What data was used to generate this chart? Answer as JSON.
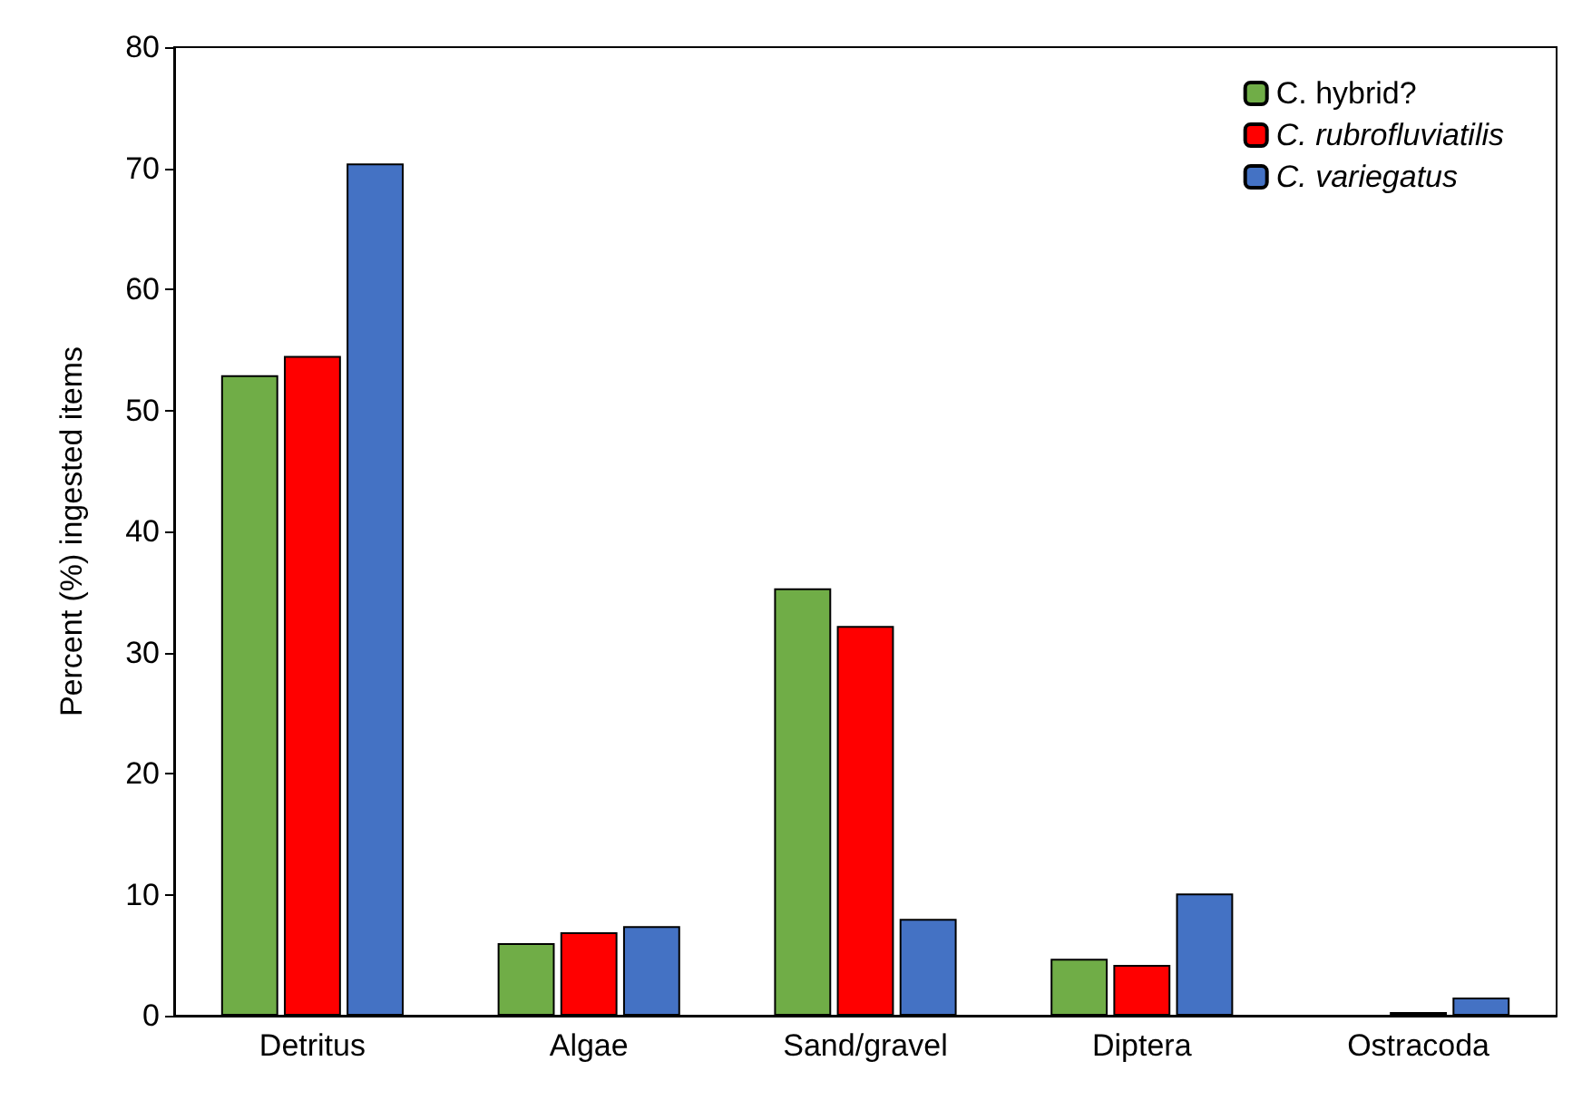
{
  "chart_data": {
    "type": "bar",
    "ylabel": "Percent (%) ingested items",
    "categories": [
      "Detritus",
      "Algae",
      "Sand/gravel",
      "Diptera",
      "Ostracoda"
    ],
    "series": [
      {
        "name": "C. hybrid?",
        "color": "#70ad47",
        "values": [
          52.9,
          6.0,
          35.3,
          4.7,
          null
        ]
      },
      {
        "name": "C. rubrofluviatilis",
        "color": "#ff0000",
        "values": [
          54.5,
          6.9,
          32.2,
          4.2,
          0.3
        ]
      },
      {
        "name": "C. variegatus",
        "color": "#4472c4",
        "values": [
          70.4,
          7.4,
          8.0,
          10.1,
          1.5
        ]
      }
    ],
    "ylim": [
      0,
      80
    ],
    "yticks": [
      0,
      10,
      20,
      30,
      40,
      50,
      60,
      70,
      80
    ],
    "grid": false,
    "legend": "top right"
  }
}
